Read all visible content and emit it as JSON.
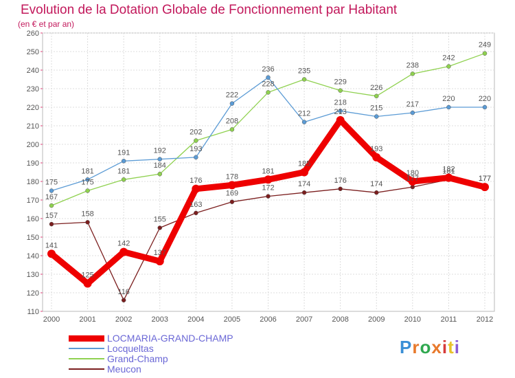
{
  "header": {
    "title": "Evolution de la Dotation Globale de Fonctionnement par Habitant",
    "subtitle": "(en € et par an)"
  },
  "logo": {
    "text": "Proxiti",
    "colors": [
      "#3a8fd6",
      "#e8792b",
      "#2fa84f",
      "#e8792b",
      "#d63a3a",
      "#e8c12b",
      "#8b5bd6"
    ]
  },
  "chart_data": {
    "type": "line",
    "title": "Evolution de la Dotation Globale de Fonctionnement par Habitant",
    "subtitle": "(en € et par an)",
    "x": [
      "2000",
      "2001",
      "2002",
      "2003",
      "2004",
      "2005",
      "2006",
      "2007",
      "2008",
      "2009",
      "2010",
      "2011",
      "2012"
    ],
    "ylim": [
      110,
      260
    ],
    "yticks": [
      110,
      120,
      130,
      140,
      150,
      160,
      170,
      180,
      190,
      200,
      210,
      220,
      230,
      240,
      250,
      260
    ],
    "grid": true,
    "legend": "bottom-left",
    "series": [
      {
        "name": "LOCMARIA-GRAND-CHAMP",
        "color": "#ee0000",
        "values": [
          141,
          125,
          142,
          137,
          176,
          178,
          181,
          185,
          213,
          193,
          180,
          182,
          177
        ]
      },
      {
        "name": "Locqueltas",
        "color": "#5b9bd5",
        "values": [
          175,
          181,
          191,
          192,
          193,
          222,
          236,
          212,
          218,
          215,
          217,
          220,
          220
        ]
      },
      {
        "name": "Grand-Champ",
        "color": "#8fd14f",
        "values": [
          167,
          175,
          181,
          184,
          202,
          208,
          228,
          235,
          229,
          226,
          238,
          242,
          249
        ]
      },
      {
        "name": "Meucon",
        "color": "#7b1e1e",
        "values": [
          157,
          158,
          116,
          155,
          163,
          169,
          172,
          174,
          176,
          174,
          177,
          181,
          177
        ]
      }
    ]
  }
}
